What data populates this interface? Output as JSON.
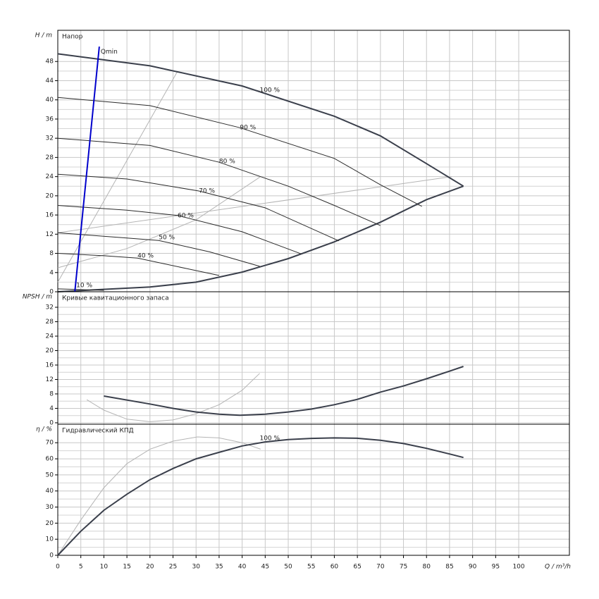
{
  "chart_data": [
    {
      "type": "line",
      "title": "Напор",
      "ylabel": "H / m",
      "xlim": [
        0,
        111
      ],
      "ylim": [
        0,
        54.5
      ],
      "yticks": [
        0,
        4,
        8,
        12,
        16,
        20,
        24,
        28,
        32,
        36,
        40,
        44,
        48
      ],
      "grid": true,
      "series": [
        {
          "color": "#b4b4b4",
          "width": 1,
          "x": [
            0,
            26
          ],
          "values": [
            2,
            46
          ]
        },
        {
          "color": "#b4b4b4",
          "width": 1,
          "x": [
            0,
            15,
            30,
            44
          ],
          "values": [
            5,
            9,
            15,
            24
          ]
        },
        {
          "color": "#b4b4b4",
          "width": 1,
          "x": [
            0,
            85.5
          ],
          "values": [
            12.3,
            24
          ]
        },
        {
          "color": "#3a3f4b",
          "width": 2,
          "x": [
            0,
            20,
            30,
            40,
            50,
            60,
            70,
            80,
            88
          ],
          "values": [
            0,
            1,
            2,
            4.1,
            6.9,
            10.4,
            14.5,
            19.2,
            22
          ]
        },
        {
          "color": "#3a3f4b",
          "width": 2,
          "x": [
            0,
            20,
            40,
            60,
            70,
            80,
            88
          ],
          "values": [
            49.6,
            47.1,
            42.9,
            36.6,
            32.5,
            26.7,
            22
          ]
        },
        {
          "color": "#2a2a2a",
          "width": 1,
          "x": [
            0,
            20,
            39.5,
            60,
            70,
            79
          ],
          "values": [
            40.5,
            38.8,
            34.2,
            27.8,
            22.3,
            17.8
          ]
        },
        {
          "color": "#2a2a2a",
          "width": 1,
          "x": [
            0,
            20,
            35,
            50,
            60,
            70
          ],
          "values": [
            32,
            30.5,
            27,
            22,
            18,
            13.8
          ]
        },
        {
          "color": "#2a2a2a",
          "width": 1,
          "x": [
            0,
            15,
            30.6,
            45,
            61
          ],
          "values": [
            24.5,
            23.5,
            21,
            17.5,
            10.6
          ]
        },
        {
          "color": "#2a2a2a",
          "width": 1,
          "x": [
            0,
            15,
            26,
            40,
            52.8
          ],
          "values": [
            18,
            17,
            15.9,
            12.5,
            7.9
          ]
        },
        {
          "color": "#2a2a2a",
          "width": 1,
          "x": [
            0,
            15,
            21.9,
            33,
            43.8
          ],
          "values": [
            12.3,
            11.2,
            10.7,
            8.3,
            5.3
          ]
        },
        {
          "color": "#2a2a2a",
          "width": 1,
          "x": [
            0,
            10,
            17.3,
            35
          ],
          "values": [
            8,
            7.5,
            7,
            3.4
          ]
        },
        {
          "color": "#2a2a2a",
          "width": 1,
          "x": [
            0,
            10
          ],
          "values": [
            0.6,
            0.3
          ]
        },
        {
          "color": "#0000cc",
          "width": 2,
          "x": [
            3.7,
            9
          ],
          "values": [
            0,
            51.1
          ]
        }
      ],
      "annotations": [
        {
          "text": "100 %",
          "x": 43.8,
          "y": 42
        },
        {
          "text": "90 %",
          "x": 39.5,
          "y": 34.2
        },
        {
          "text": "80 %",
          "x": 35,
          "y": 27.2
        },
        {
          "text": "70 %",
          "x": 30.6,
          "y": 21
        },
        {
          "text": "60 %",
          "x": 26,
          "y": 15.9
        },
        {
          "text": "50 %",
          "x": 21.9,
          "y": 11.3
        },
        {
          "text": "40 %",
          "x": 17.3,
          "y": 7.5
        },
        {
          "text": "10 %",
          "x": 4,
          "y": 1.3
        },
        {
          "text": "Qmin",
          "x": 9.3,
          "y": 50
        }
      ]
    },
    {
      "type": "line",
      "title": "Кривые кавитационного запаса",
      "ylabel": "NPSH / m",
      "xlim": [
        0,
        111
      ],
      "ylim": [
        -0.4,
        36.3
      ],
      "yticks": [
        0,
        4,
        8,
        12,
        16,
        20,
        24,
        28,
        32
      ],
      "grid": true,
      "series": [
        {
          "color": "#b4b4b4",
          "width": 1,
          "x": [
            6.3,
            10,
            15,
            20,
            25,
            30,
            35,
            40,
            43.8
          ],
          "values": [
            6.4,
            3.5,
            1,
            0.3,
            0.8,
            2.5,
            5,
            9,
            13.7
          ]
        },
        {
          "color": "#3a3f4b",
          "width": 2,
          "x": [
            10,
            20,
            25,
            30,
            35,
            39.5,
            45,
            50,
            55,
            60,
            65,
            70,
            75,
            80,
            85,
            88
          ],
          "values": [
            7.4,
            5.2,
            4,
            3,
            2.4,
            2.1,
            2.4,
            3,
            3.8,
            5,
            6.5,
            8.5,
            10.2,
            12.2,
            14.3,
            15.6
          ]
        }
      ],
      "annotations": []
    },
    {
      "type": "line",
      "title": "Гидравлический КПД",
      "ylabel": "η / %",
      "xlabel": "Q / m³/h",
      "xlim": [
        0,
        111
      ],
      "ylim": [
        0,
        81.5
      ],
      "xticks": [
        0,
        5,
        10,
        15,
        20,
        25,
        30,
        35,
        40,
        45,
        50,
        55,
        60,
        65,
        70,
        75,
        80,
        85,
        90,
        95,
        100
      ],
      "yticks": [
        0,
        10,
        20,
        30,
        40,
        50,
        60,
        70
      ],
      "grid": true,
      "series": [
        {
          "color": "#b4b4b4",
          "width": 1,
          "x": [
            0,
            5,
            10,
            15,
            20,
            25,
            30.3,
            35,
            40,
            44
          ],
          "values": [
            0,
            22,
            42,
            57,
            66,
            71,
            73.6,
            73,
            70,
            66
          ]
        },
        {
          "color": "#3a3f4b",
          "width": 2,
          "x": [
            0,
            5,
            10,
            15,
            20,
            25,
            30,
            35,
            40,
            45,
            50,
            55,
            60,
            65,
            70,
            75,
            80,
            85,
            88
          ],
          "values": [
            0,
            15,
            28,
            38,
            47,
            54,
            60,
            64,
            68,
            70.5,
            72,
            72.7,
            73,
            72.8,
            71.5,
            69.5,
            66.5,
            63,
            60.8
          ]
        }
      ],
      "annotations": [
        {
          "text": "100 %",
          "x": 43.8,
          "y": 72.7
        }
      ]
    }
  ]
}
